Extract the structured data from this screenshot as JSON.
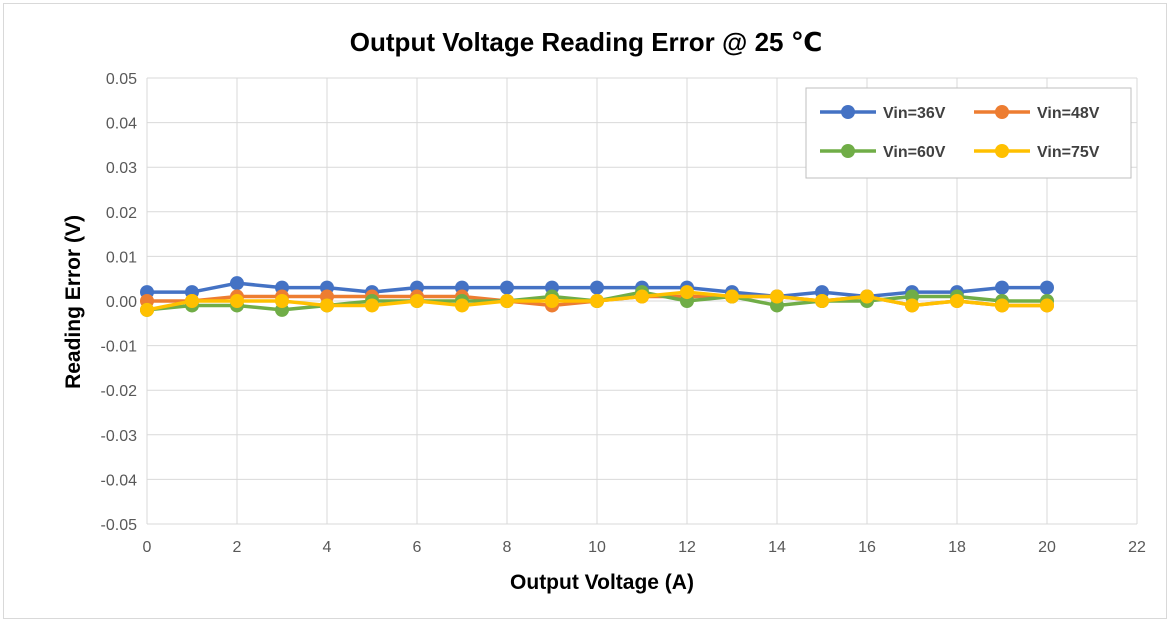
{
  "chart_data": {
    "type": "line",
    "title": "Output Voltage Reading Error @ 25 ℃",
    "xlabel": "Output Voltage (A)",
    "ylabel": "Reading Error (V)",
    "xlim": [
      0,
      22
    ],
    "ylim": [
      -0.05,
      0.05
    ],
    "x_ticks": [
      "0",
      "2",
      "4",
      "6",
      "8",
      "10",
      "12",
      "14",
      "16",
      "18",
      "20",
      "22"
    ],
    "y_ticks": [
      "0.05",
      "0.04",
      "0.03",
      "0.02",
      "0.01",
      "0.00",
      "-0.01",
      "-0.02",
      "-0.03",
      "-0.04",
      "-0.05"
    ],
    "grid": true,
    "legend_position": "top-right",
    "x": [
      0,
      1,
      2,
      3,
      4,
      5,
      6,
      7,
      8,
      9,
      10,
      11,
      12,
      13,
      14,
      15,
      16,
      17,
      18,
      19,
      20
    ],
    "series": [
      {
        "name": "Vin=36V",
        "color": "#4472c4",
        "values": [
          0.002,
          0.002,
          0.004,
          0.003,
          0.003,
          0.002,
          0.003,
          0.003,
          0.003,
          0.003,
          0.003,
          0.003,
          0.003,
          0.002,
          0.001,
          0.002,
          0.001,
          0.002,
          0.002,
          0.003,
          0.003
        ]
      },
      {
        "name": "Vin=48V",
        "color": "#ed7d31",
        "values": [
          0.0,
          0.0,
          0.001,
          0.001,
          0.001,
          0.001,
          0.001,
          0.001,
          0.0,
          -0.001,
          0.0,
          0.001,
          0.001,
          0.001,
          0.001,
          0.0,
          0.001,
          -0.001,
          0.0,
          -0.001,
          -0.001
        ]
      },
      {
        "name": "Vin=60V",
        "color": "#70ad47",
        "values": [
          -0.002,
          -0.001,
          -0.001,
          -0.002,
          -0.001,
          0.0,
          0.0,
          0.0,
          0.0,
          0.001,
          0.0,
          0.002,
          0.0,
          0.001,
          -0.001,
          0.0,
          0.0,
          0.001,
          0.001,
          0.0,
          0.0
        ]
      },
      {
        "name": "Vin=75V",
        "color": "#ffc000",
        "values": [
          -0.002,
          0.0,
          0.0,
          0.0,
          -0.001,
          -0.001,
          0.0,
          -0.001,
          0.0,
          0.0,
          0.0,
          0.001,
          0.002,
          0.001,
          0.001,
          0.0,
          0.001,
          -0.001,
          0.0,
          -0.001,
          -0.001
        ]
      }
    ]
  }
}
